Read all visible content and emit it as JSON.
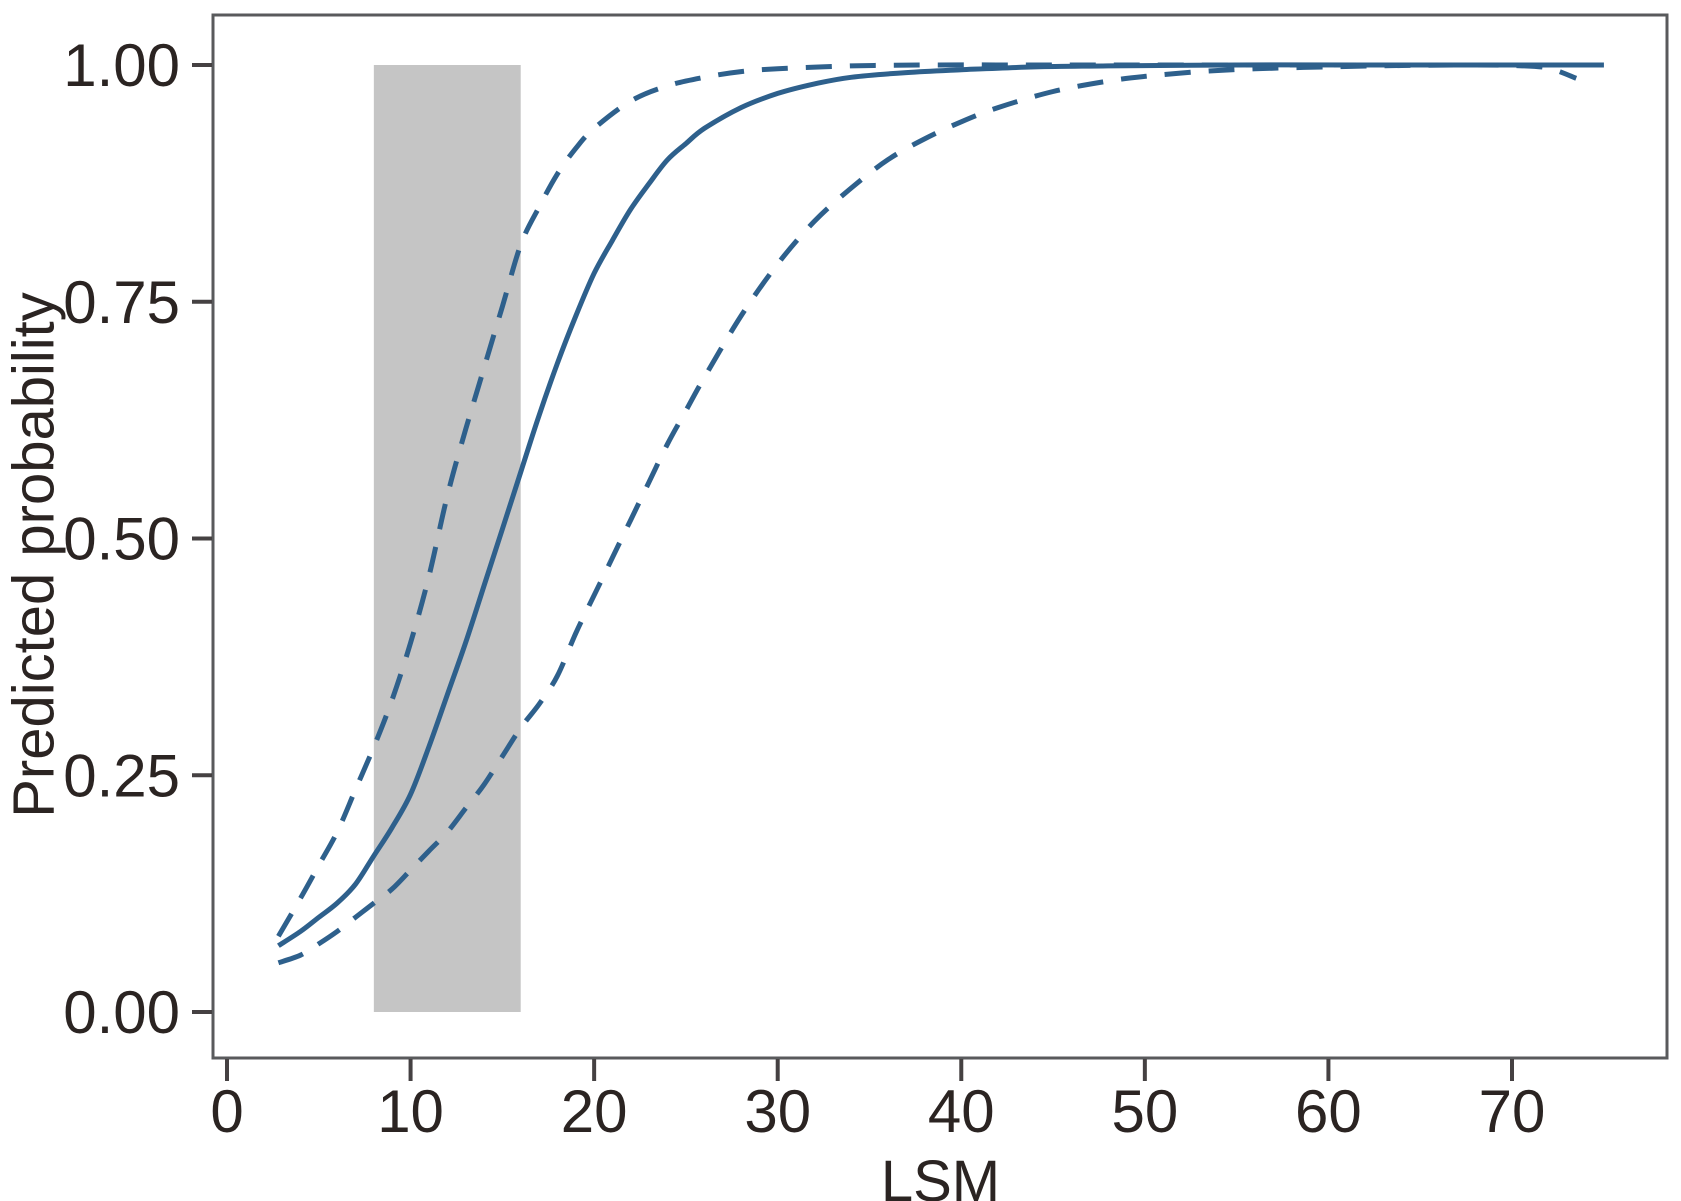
{
  "chart_data": {
    "type": "line",
    "title": "",
    "xlabel": "LSM",
    "ylabel": "Predicted probability",
    "xlim": [
      -0.8,
      77.5
    ],
    "ylim": [
      -0.05,
      1.05
    ],
    "grid": false,
    "legend": null,
    "x_ticks": [
      0,
      10,
      20,
      30,
      40,
      50,
      60,
      70
    ],
    "x_tick_labels": [
      "0",
      "10",
      "20",
      "30",
      "40",
      "50",
      "60",
      "70"
    ],
    "y_ticks": [
      0,
      0.25,
      0.5,
      0.75,
      1.0
    ],
    "y_tick_labels": [
      "0.00",
      "0.25",
      "0.50",
      "0.75",
      "1.00"
    ],
    "colors": {
      "line": "#2e608c",
      "band": "#c5c5c5",
      "frame": "#595a5c",
      "tick": "#454142",
      "text": "#2b2422",
      "background": "#ffffff"
    },
    "reference_band": {
      "x_from": 8,
      "x_to": 16,
      "y_from": 0.0,
      "y_to": 1.0
    },
    "series": [
      {
        "name": "predicted-probability",
        "style": "solid",
        "x": [
          2.8,
          4,
          5,
          6,
          7,
          8,
          9,
          10,
          11,
          12,
          13,
          14,
          15,
          16,
          17,
          18,
          19,
          20,
          21,
          22,
          23,
          24,
          25,
          26,
          28,
          30,
          32,
          34,
          37,
          40,
          44,
          48,
          55,
          62,
          68,
          75
        ],
        "y": [
          0.07,
          0.085,
          0.1,
          0.115,
          0.135,
          0.165,
          0.195,
          0.23,
          0.28,
          0.335,
          0.39,
          0.45,
          0.51,
          0.57,
          0.63,
          0.685,
          0.735,
          0.78,
          0.815,
          0.848,
          0.875,
          0.9,
          0.917,
          0.933,
          0.955,
          0.97,
          0.98,
          0.987,
          0.992,
          0.995,
          0.998,
          0.999,
          1.0,
          1.0,
          1.0,
          1.0
        ]
      },
      {
        "name": "ci-upper",
        "style": "dashed",
        "x": [
          2.8,
          4,
          5,
          6,
          7,
          8,
          9,
          10,
          11,
          12,
          13,
          14,
          15,
          16,
          17,
          18,
          19,
          20,
          22,
          24,
          26,
          28,
          30,
          34,
          38,
          44,
          50,
          58,
          66,
          75
        ],
        "y": [
          0.08,
          0.12,
          0.155,
          0.19,
          0.235,
          0.28,
          0.33,
          0.39,
          0.46,
          0.545,
          0.615,
          0.68,
          0.745,
          0.81,
          0.85,
          0.885,
          0.912,
          0.933,
          0.962,
          0.978,
          0.987,
          0.993,
          0.996,
          0.999,
          1.0,
          1.0,
          1.0,
          1.0,
          1.0,
          1.0
        ]
      },
      {
        "name": "ci-lower",
        "style": "dashed",
        "x": [
          2.8,
          4,
          5,
          6,
          7,
          8,
          9,
          10,
          11,
          12,
          13,
          14,
          15,
          16,
          17,
          18,
          19,
          20,
          21,
          22,
          23,
          24,
          25,
          26,
          28,
          30,
          32,
          34,
          36,
          38,
          40,
          42,
          45,
          48,
          50,
          53,
          56,
          60,
          64,
          68,
          70,
          71.9,
          73.5
        ],
        "y": [
          0.052,
          0.06,
          0.072,
          0.085,
          0.1,
          0.115,
          0.13,
          0.15,
          0.17,
          0.19,
          0.215,
          0.24,
          0.27,
          0.3,
          0.325,
          0.355,
          0.4,
          0.44,
          0.48,
          0.52,
          0.56,
          0.6,
          0.635,
          0.67,
          0.735,
          0.79,
          0.835,
          0.87,
          0.9,
          0.922,
          0.94,
          0.955,
          0.972,
          0.983,
          0.988,
          0.993,
          0.996,
          0.998,
          0.9995,
          1.0,
          0.9995,
          0.997,
          0.986
        ]
      }
    ]
  }
}
